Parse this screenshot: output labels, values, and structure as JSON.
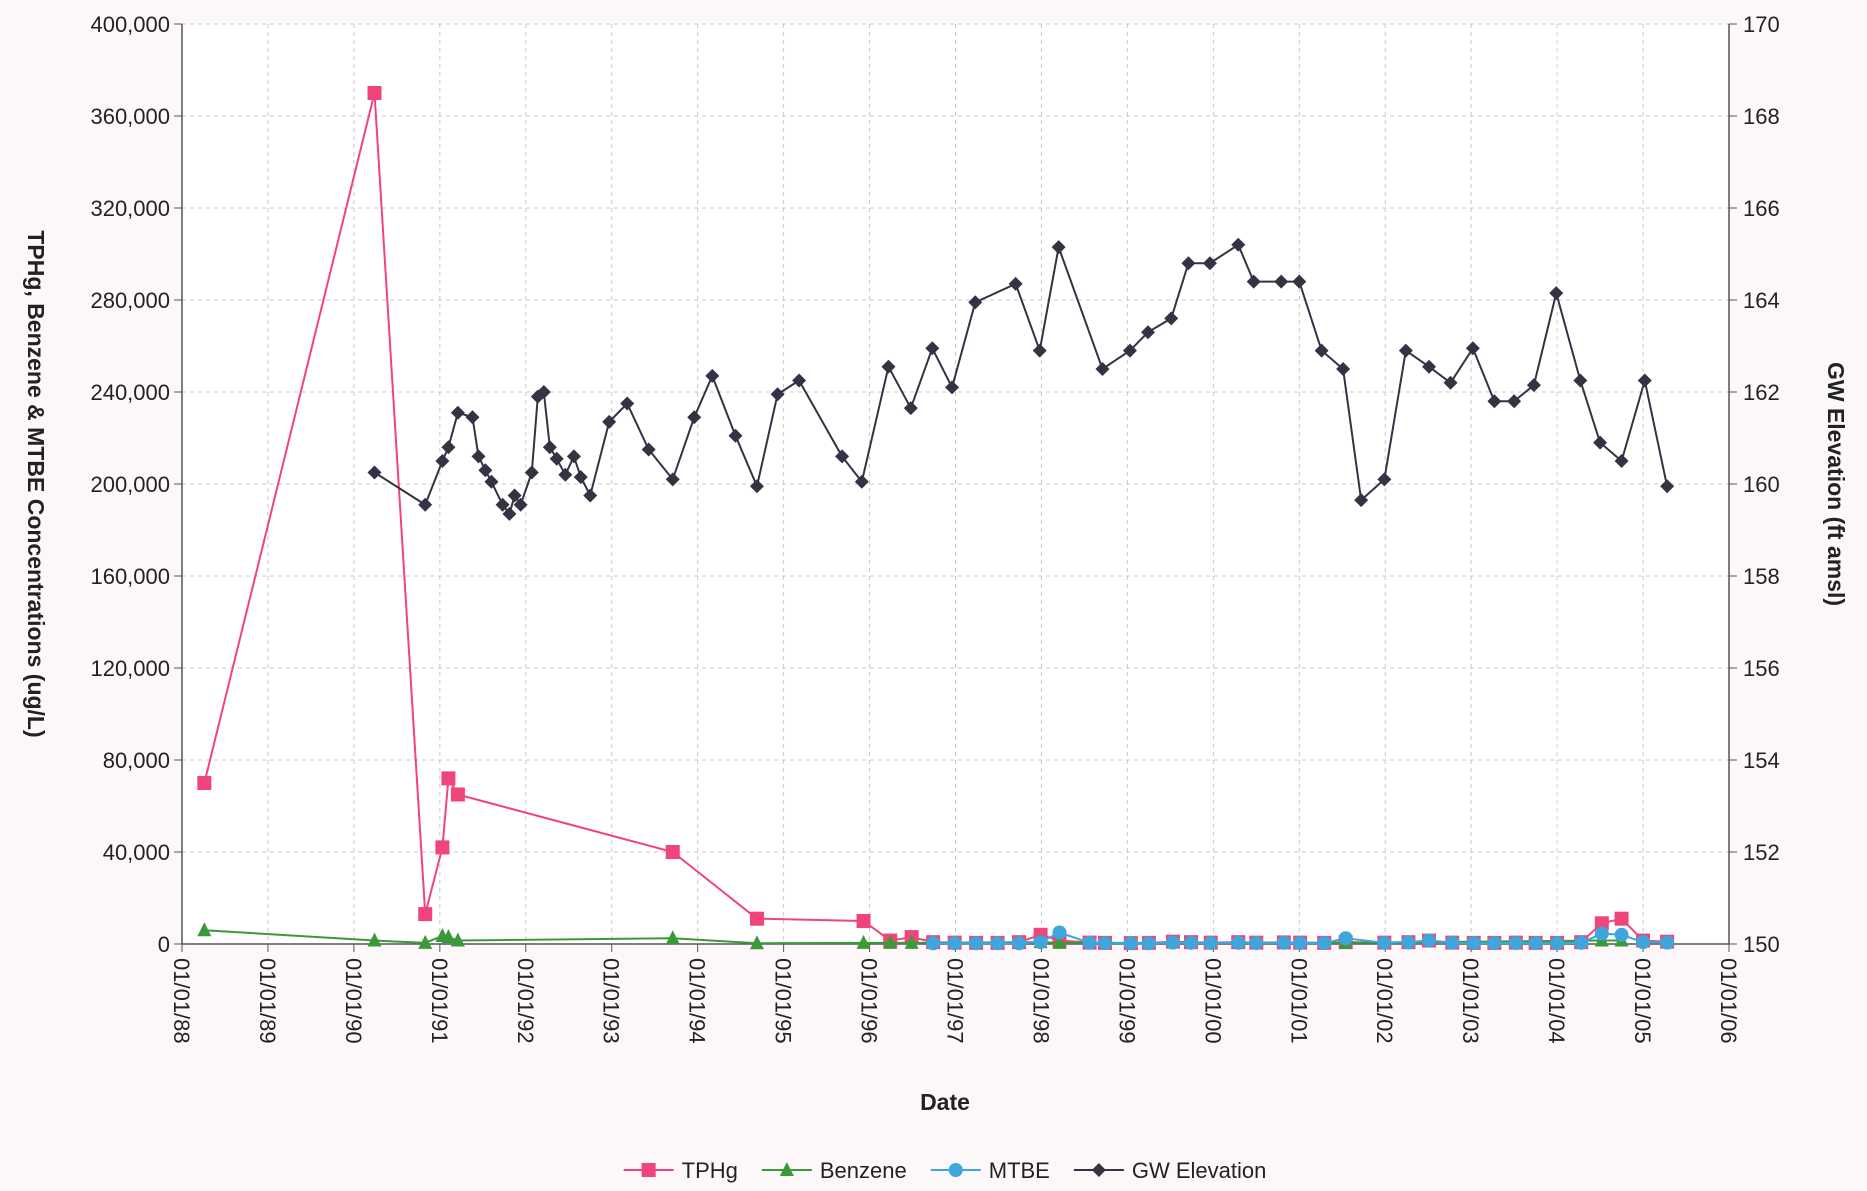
{
  "chart_data": {
    "type": "line",
    "xlabel": "Date",
    "ylabel": "TPHg, Benzene & MTBE Concentrations (ug/L)",
    "y2label": "GW Elevation (ft amsl)",
    "xlim": [
      1988,
      2006
    ],
    "xticks": [
      {
        "value": 1988,
        "label": "01/01/88"
      },
      {
        "value": 1989,
        "label": "01/01/89"
      },
      {
        "value": 1990,
        "label": "01/01/90"
      },
      {
        "value": 1991,
        "label": "01/01/91"
      },
      {
        "value": 1992,
        "label": "01/01/92"
      },
      {
        "value": 1993,
        "label": "01/01/93"
      },
      {
        "value": 1994,
        "label": "01/01/94"
      },
      {
        "value": 1995,
        "label": "01/01/95"
      },
      {
        "value": 1996,
        "label": "01/01/96"
      },
      {
        "value": 1997,
        "label": "01/01/97"
      },
      {
        "value": 1998,
        "label": "01/01/98"
      },
      {
        "value": 1999,
        "label": "01/01/99"
      },
      {
        "value": 2000,
        "label": "01/01/00"
      },
      {
        "value": 2001,
        "label": "01/01/01"
      },
      {
        "value": 2002,
        "label": "01/01/02"
      },
      {
        "value": 2003,
        "label": "01/01/03"
      },
      {
        "value": 2004,
        "label": "01/01/04"
      },
      {
        "value": 2005,
        "label": "01/01/05"
      },
      {
        "value": 2006,
        "label": "01/01/06"
      }
    ],
    "ylim": [
      0,
      400000
    ],
    "yticks": [
      0,
      {
        "value": 40000,
        "label": "40,000"
      },
      {
        "value": 80000,
        "label": "80,000"
      },
      {
        "value": 120000,
        "label": "120,000"
      },
      {
        "value": 160000,
        "label": "160,000"
      },
      {
        "value": 200000,
        "label": "200,000"
      },
      {
        "value": 240000,
        "label": "240,000"
      },
      {
        "value": 280000,
        "label": "280,000"
      },
      {
        "value": 320000,
        "label": "320,000"
      },
      {
        "value": 360000,
        "label": "360,000"
      },
      {
        "value": 400000,
        "label": "400,000"
      }
    ],
    "y2lim": [
      150,
      170
    ],
    "y2ticks": [
      150,
      152,
      154,
      156,
      158,
      160,
      162,
      164,
      166,
      168,
      170
    ],
    "grid": true,
    "legend": "bottom",
    "series": [
      {
        "name": "TPHg",
        "color": "#f0457a",
        "marker": "square",
        "x": [
          1988.26,
          1990.24,
          1990.83,
          1991.03,
          1991.1,
          1991.21,
          1993.71,
          1994.69,
          1995.93,
          1996.24,
          1996.49,
          1996.74,
          1996.99,
          1997.24,
          1997.49,
          1997.74,
          1997.99,
          1998.21,
          1998.56,
          1998.74,
          1999.04,
          1999.25,
          1999.53,
          1999.74,
          1999.97,
          2000.29,
          2000.5,
          2000.82,
          2001.01,
          2001.29,
          2001.54,
          2001.99,
          2002.27,
          2002.51,
          2002.78,
          2003.03,
          2003.27,
          2003.52,
          2003.75,
          2004.0,
          2004.28,
          2004.52,
          2004.75,
          2005.0,
          2005.28
        ],
        "values": [
          70000,
          370000,
          13000,
          42000,
          72000,
          65000,
          40000,
          11000,
          10000,
          1500,
          3000,
          800,
          600,
          500,
          500,
          800,
          4000,
          1500,
          600,
          500,
          400,
          500,
          1000,
          800,
          600,
          800,
          600,
          700,
          600,
          500,
          800,
          600,
          800,
          1500,
          600,
          500,
          500,
          600,
          500,
          500,
          800,
          9000,
          11000,
          1500,
          1000
        ]
      },
      {
        "name": "Benzene",
        "color": "#3a9a3a",
        "marker": "triangle",
        "x": [
          1988.26,
          1990.24,
          1990.83,
          1991.03,
          1991.1,
          1991.21,
          1993.71,
          1994.69,
          1995.93,
          1996.24,
          1996.49,
          1997.99,
          1998.21,
          2001.54,
          2004.52,
          2004.75
        ],
        "values": [
          6000,
          1500,
          500,
          3500,
          3000,
          1500,
          2500,
          300,
          500,
          500,
          500,
          800,
          500,
          500,
          1500,
          1500
        ]
      },
      {
        "name": "MTBE",
        "color": "#3fa6dc",
        "marker": "circle",
        "x": [
          1996.74,
          1996.99,
          1997.24,
          1997.49,
          1997.74,
          1997.99,
          1998.21,
          1998.56,
          1998.74,
          1999.04,
          1999.25,
          1999.53,
          1999.74,
          1999.97,
          2000.29,
          2000.5,
          2000.82,
          2001.01,
          2001.29,
          2001.54,
          2001.99,
          2002.27,
          2002.51,
          2002.78,
          2003.03,
          2003.27,
          2003.52,
          2003.75,
          2004.0,
          2004.28,
          2004.52,
          2004.75,
          2005.0,
          2005.28
        ],
        "values": [
          300,
          300,
          300,
          300,
          300,
          800,
          5000,
          500,
          400,
          300,
          300,
          600,
          500,
          400,
          500,
          400,
          500,
          400,
          400,
          2500,
          500,
          700,
          1500,
          500,
          400,
          400,
          400,
          400,
          300,
          500,
          4500,
          4000,
          800,
          600
        ]
      },
      {
        "name": "GW Elevation",
        "color": "#333344",
        "marker": "diamond",
        "axis": "y2",
        "x": [
          1990.24,
          1990.83,
          1991.03,
          1991.1,
          1991.21,
          1991.38,
          1991.45,
          1991.53,
          1991.6,
          1991.73,
          1991.81,
          1991.87,
          1991.94,
          1992.07,
          1992.14,
          1992.21,
          1992.28,
          1992.36,
          1992.46,
          1992.56,
          1992.64,
          1992.75,
          1992.97,
          1993.18,
          1993.43,
          1993.71,
          1993.96,
          1994.17,
          1994.44,
          1994.69,
          1994.93,
          1995.18,
          1995.68,
          1995.91,
          1996.22,
          1996.48,
          1996.73,
          1996.96,
          1997.23,
          1997.7,
          1997.98,
          1998.2,
          1998.71,
          1999.03,
          1999.24,
          1999.51,
          1999.71,
          1999.96,
          2000.29,
          2000.47,
          2000.79,
          2001.0,
          2001.26,
          2001.51,
          2001.72,
          2001.99,
          2002.24,
          2002.51,
          2002.76,
          2003.02,
          2003.27,
          2003.5,
          2003.73,
          2003.99,
          2004.27,
          2004.5,
          2004.75,
          2005.02,
          2005.28
        ],
        "values": [
          160.25,
          159.55,
          160.5,
          160.8,
          161.55,
          161.45,
          160.6,
          160.3,
          160.05,
          159.55,
          159.35,
          159.75,
          159.55,
          160.25,
          161.9,
          162.0,
          160.8,
          160.55,
          160.2,
          160.6,
          160.15,
          159.75,
          161.35,
          161.75,
          160.75,
          160.1,
          161.45,
          162.35,
          161.05,
          159.95,
          161.95,
          162.25,
          160.6,
          160.05,
          162.55,
          161.65,
          162.95,
          162.1,
          163.95,
          164.35,
          162.9,
          165.15,
          162.5,
          162.9,
          163.3,
          163.6,
          164.8,
          164.8,
          165.2,
          164.4,
          164.4,
          164.4,
          162.9,
          162.5,
          159.65,
          160.1,
          162.9,
          162.55,
          162.2,
          162.95,
          161.8,
          161.8,
          162.15,
          164.15,
          162.25,
          160.9,
          160.5,
          162.25,
          159.95
        ]
      }
    ]
  }
}
